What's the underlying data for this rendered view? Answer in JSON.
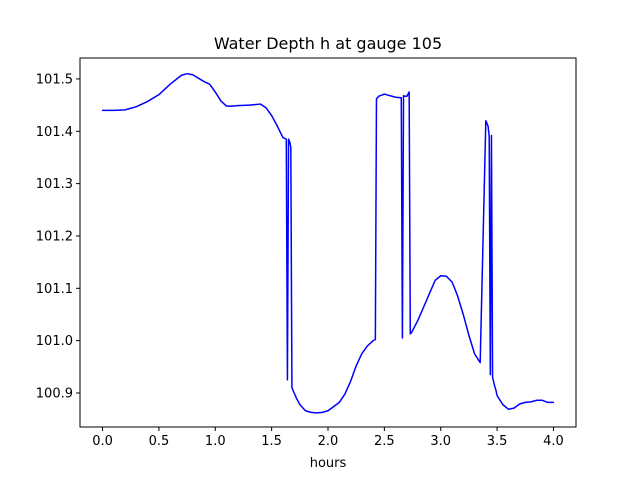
{
  "chart_data": {
    "type": "line",
    "title": "Water Depth h at gauge 105",
    "xlabel": "hours",
    "ylabel": "",
    "xlim": [
      -0.2,
      4.2
    ],
    "ylim": [
      100.835,
      101.54
    ],
    "xticks": [
      0.0,
      0.5,
      1.0,
      1.5,
      2.0,
      2.5,
      3.0,
      3.5,
      4.0
    ],
    "xtick_labels": [
      "0.0",
      "0.5",
      "1.0",
      "1.5",
      "2.0",
      "2.5",
      "3.0",
      "3.5",
      "4.0"
    ],
    "yticks": [
      100.9,
      101.0,
      101.1,
      101.2,
      101.3,
      101.4,
      101.5
    ],
    "ytick_labels": [
      "100.9",
      "101.0",
      "101.1",
      "101.2",
      "101.3",
      "101.4",
      "101.5"
    ],
    "grid": false,
    "series": [
      {
        "color": "#0000ff",
        "x": [
          0.0,
          0.1,
          0.2,
          0.3,
          0.4,
          0.5,
          0.6,
          0.7,
          0.75,
          0.8,
          0.9,
          0.95,
          1.0,
          1.05,
          1.1,
          1.15,
          1.2,
          1.3,
          1.35,
          1.4,
          1.45,
          1.5,
          1.55,
          1.6,
          1.63,
          1.64,
          1.65,
          1.66,
          1.67,
          1.68,
          1.69,
          1.72,
          1.75,
          1.8,
          1.85,
          1.9,
          1.95,
          2.0,
          2.05,
          2.1,
          2.15,
          2.2,
          2.25,
          2.3,
          2.35,
          2.4,
          2.42,
          2.43,
          2.45,
          2.5,
          2.55,
          2.6,
          2.65,
          2.66,
          2.67,
          2.68,
          2.7,
          2.72,
          2.73,
          2.74,
          2.8,
          2.85,
          2.9,
          2.95,
          3.0,
          3.05,
          3.1,
          3.12,
          3.15,
          3.2,
          3.25,
          3.3,
          3.35,
          3.4,
          3.42,
          3.43,
          3.44,
          3.45,
          3.46,
          3.47,
          3.48,
          3.49,
          3.5,
          3.55,
          3.6,
          3.65,
          3.7,
          3.75,
          3.8,
          3.85,
          3.9,
          3.95,
          4.0
        ],
        "y": [
          101.44,
          101.44,
          101.441,
          101.447,
          101.457,
          101.47,
          101.49,
          101.507,
          101.51,
          101.508,
          101.495,
          101.49,
          101.475,
          101.458,
          101.448,
          101.448,
          101.449,
          101.45,
          101.451,
          101.452,
          101.445,
          101.43,
          101.41,
          101.388,
          101.385,
          100.925,
          101.385,
          101.38,
          101.37,
          100.91,
          100.905,
          100.89,
          100.878,
          100.866,
          100.863,
          100.862,
          100.863,
          100.866,
          100.874,
          100.882,
          100.898,
          100.922,
          100.952,
          100.975,
          100.99,
          101.0,
          101.002,
          101.462,
          101.467,
          101.471,
          101.468,
          101.465,
          101.464,
          101.005,
          101.468,
          101.467,
          101.467,
          101.475,
          101.013,
          101.015,
          101.04,
          101.065,
          101.09,
          101.115,
          101.124,
          101.123,
          101.112,
          101.102,
          101.085,
          101.05,
          101.01,
          100.975,
          100.958,
          101.42,
          101.41,
          101.39,
          100.935,
          101.392,
          100.93,
          100.921,
          100.912,
          100.905,
          100.895,
          100.878,
          100.869,
          100.871,
          100.879,
          100.882,
          100.883,
          100.886,
          100.886,
          100.882,
          100.882
        ]
      }
    ]
  }
}
